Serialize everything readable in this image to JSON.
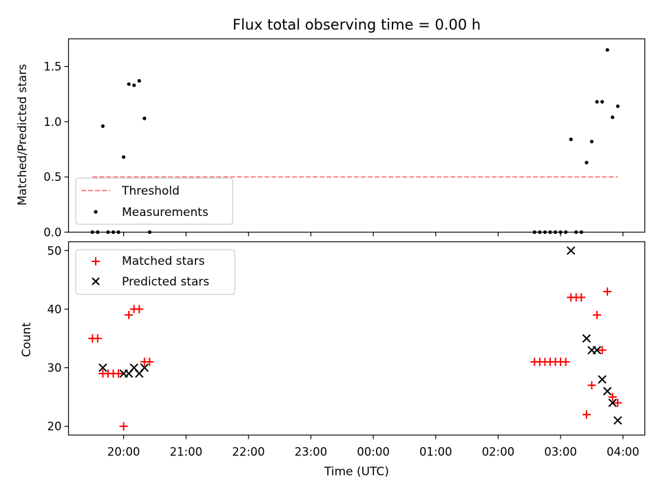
{
  "chart_data": [
    {
      "type": "scatter",
      "title": "Flux total observing time = 0.00 h",
      "xlabel": "",
      "ylabel": "Matched/Predicted stars",
      "ylim": [
        0,
        1.75
      ],
      "xlim": [
        "19:07",
        "04:21"
      ],
      "yticks": [
        "0.0",
        "0.5",
        "1.0",
        "1.5"
      ],
      "grid": false,
      "legend_position": "lower-left",
      "threshold": {
        "name": "Threshold",
        "value": 0.5,
        "x_start": "19:30",
        "x_end": "03:55",
        "color": "#ff7f7f",
        "style": "dashed"
      },
      "series": [
        {
          "name": "Measurements",
          "color": "#000000",
          "points": [
            [
              "19:30",
              0
            ],
            [
              "19:35",
              0
            ],
            [
              "19:45",
              0
            ],
            [
              "19:50",
              0
            ],
            [
              "19:55",
              0
            ],
            [
              "19:40",
              0.96
            ],
            [
              "20:00",
              0.68
            ],
            [
              "20:05",
              1.34
            ],
            [
              "20:10",
              1.33
            ],
            [
              "20:15",
              1.37
            ],
            [
              "20:20",
              1.03
            ],
            [
              "20:25",
              0
            ],
            [
              "02:35",
              0
            ],
            [
              "02:40",
              0
            ],
            [
              "02:45",
              0
            ],
            [
              "02:50",
              0
            ],
            [
              "02:55",
              0
            ],
            [
              "03:00",
              0
            ],
            [
              "03:05",
              0
            ],
            [
              "03:10",
              0.84
            ],
            [
              "03:15",
              0
            ],
            [
              "03:20",
              0
            ],
            [
              "03:25",
              0.63
            ],
            [
              "03:30",
              0.82
            ],
            [
              "03:35",
              1.18
            ],
            [
              "03:40",
              1.18
            ],
            [
              "03:45",
              1.65
            ],
            [
              "03:50",
              1.04
            ],
            [
              "03:55",
              1.14
            ]
          ]
        }
      ]
    },
    {
      "type": "scatter",
      "title": "",
      "xlabel": "Time (UTC)",
      "ylabel": "Count",
      "ylim": [
        18.5,
        51.5
      ],
      "xlim": [
        "19:07",
        "04:21"
      ],
      "yticks": [
        "20",
        "30",
        "40",
        "50"
      ],
      "xticks": [
        "20:00",
        "21:00",
        "22:00",
        "23:00",
        "00:00",
        "01:00",
        "02:00",
        "03:00",
        "04:00"
      ],
      "grid": false,
      "legend_position": "upper-left",
      "series": [
        {
          "name": "Matched stars",
          "marker": "+",
          "color": "#ff0000",
          "points": [
            [
              "19:30",
              35
            ],
            [
              "19:35",
              35
            ],
            [
              "19:40",
              29
            ],
            [
              "19:45",
              29
            ],
            [
              "19:50",
              29
            ],
            [
              "19:55",
              29
            ],
            [
              "20:00",
              20
            ],
            [
              "20:05",
              39
            ],
            [
              "20:10",
              40
            ],
            [
              "20:15",
              40
            ],
            [
              "20:20",
              31
            ],
            [
              "20:25",
              31
            ],
            [
              "02:35",
              31
            ],
            [
              "02:40",
              31
            ],
            [
              "02:45",
              31
            ],
            [
              "02:50",
              31
            ],
            [
              "02:55",
              31
            ],
            [
              "03:00",
              31
            ],
            [
              "03:05",
              31
            ],
            [
              "03:10",
              42
            ],
            [
              "03:15",
              42
            ],
            [
              "03:20",
              42
            ],
            [
              "03:25",
              22
            ],
            [
              "03:30",
              27
            ],
            [
              "03:35",
              39
            ],
            [
              "03:40",
              33
            ],
            [
              "03:45",
              43
            ],
            [
              "03:50",
              25
            ],
            [
              "03:55",
              24
            ]
          ]
        },
        {
          "name": "Predicted stars",
          "marker": "x",
          "color": "#000000",
          "points": [
            [
              "19:40",
              30
            ],
            [
              "20:00",
              29
            ],
            [
              "20:05",
              29
            ],
            [
              "20:10",
              30
            ],
            [
              "20:15",
              29
            ],
            [
              "20:20",
              30
            ],
            [
              "03:10",
              50
            ],
            [
              "03:25",
              35
            ],
            [
              "03:30",
              33
            ],
            [
              "03:35",
              33
            ],
            [
              "03:40",
              28
            ],
            [
              "03:45",
              26
            ],
            [
              "03:50",
              24
            ],
            [
              "03:55",
              21
            ]
          ]
        }
      ]
    }
  ]
}
